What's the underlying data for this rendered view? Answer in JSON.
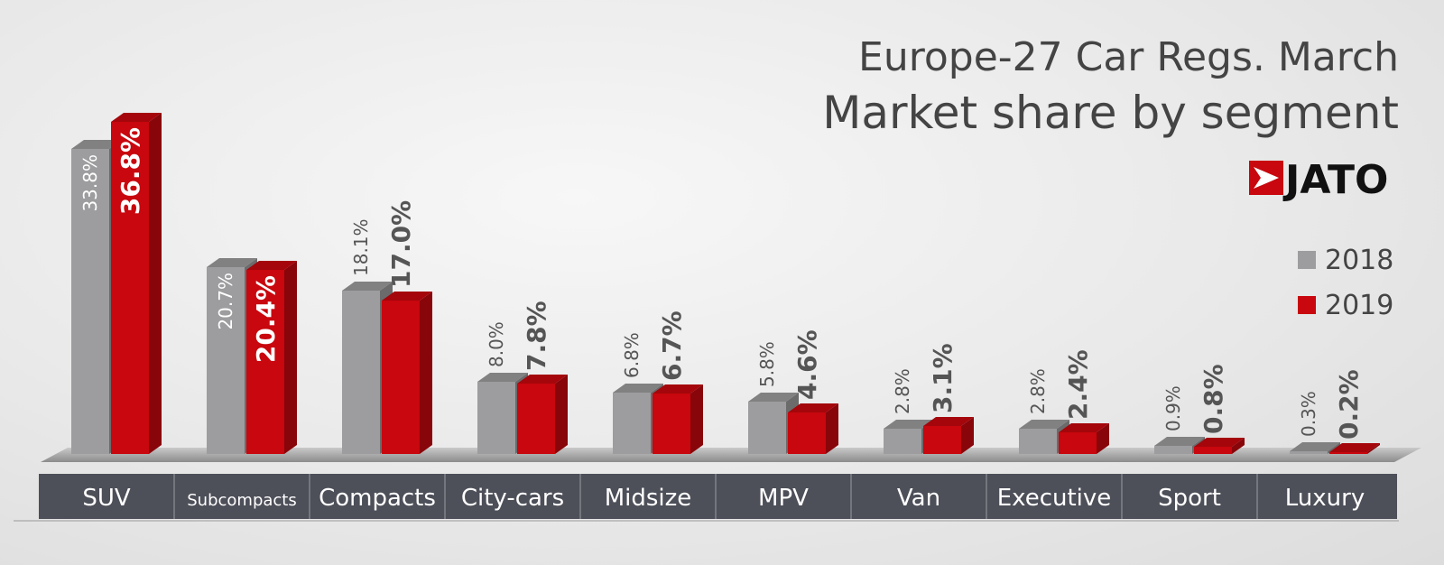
{
  "chart_data": {
    "type": "bar",
    "title": "Europe-27 Car Regs. March",
    "subtitle": "Market share by segment",
    "categories": [
      "SUV",
      "Subcompacts",
      "Compacts",
      "City-cars",
      "Midsize",
      "MPV",
      "Van",
      "Executive",
      "Sport",
      "Luxury"
    ],
    "series": [
      {
        "name": "2018",
        "values": [
          33.8,
          20.7,
          18.1,
          8.0,
          6.8,
          5.8,
          2.8,
          2.8,
          0.9,
          0.3
        ],
        "labels": [
          "33.8%",
          "20.7%",
          "18.1%",
          "8.0%",
          "6.8%",
          "5.8%",
          "2.8%",
          "2.8%",
          "0.9%",
          "0.3%"
        ]
      },
      {
        "name": "2019",
        "values": [
          36.8,
          20.4,
          17.0,
          7.8,
          6.7,
          4.6,
          3.1,
          2.4,
          0.8,
          0.2
        ],
        "labels": [
          "36.8%",
          "20.4%",
          "17.0%",
          "7.8%",
          "6.7%",
          "4.6%",
          "3.1%",
          "2.4%",
          "0.8%",
          "0.2%"
        ]
      }
    ],
    "ylim": [
      0,
      37
    ],
    "grid": false,
    "legend_position": "right",
    "colors": {
      "2018": "#9d9d9f",
      "2019": "#c8070e"
    }
  },
  "brand": {
    "logo_text": "JATO",
    "logo_color": "#c8070e"
  }
}
